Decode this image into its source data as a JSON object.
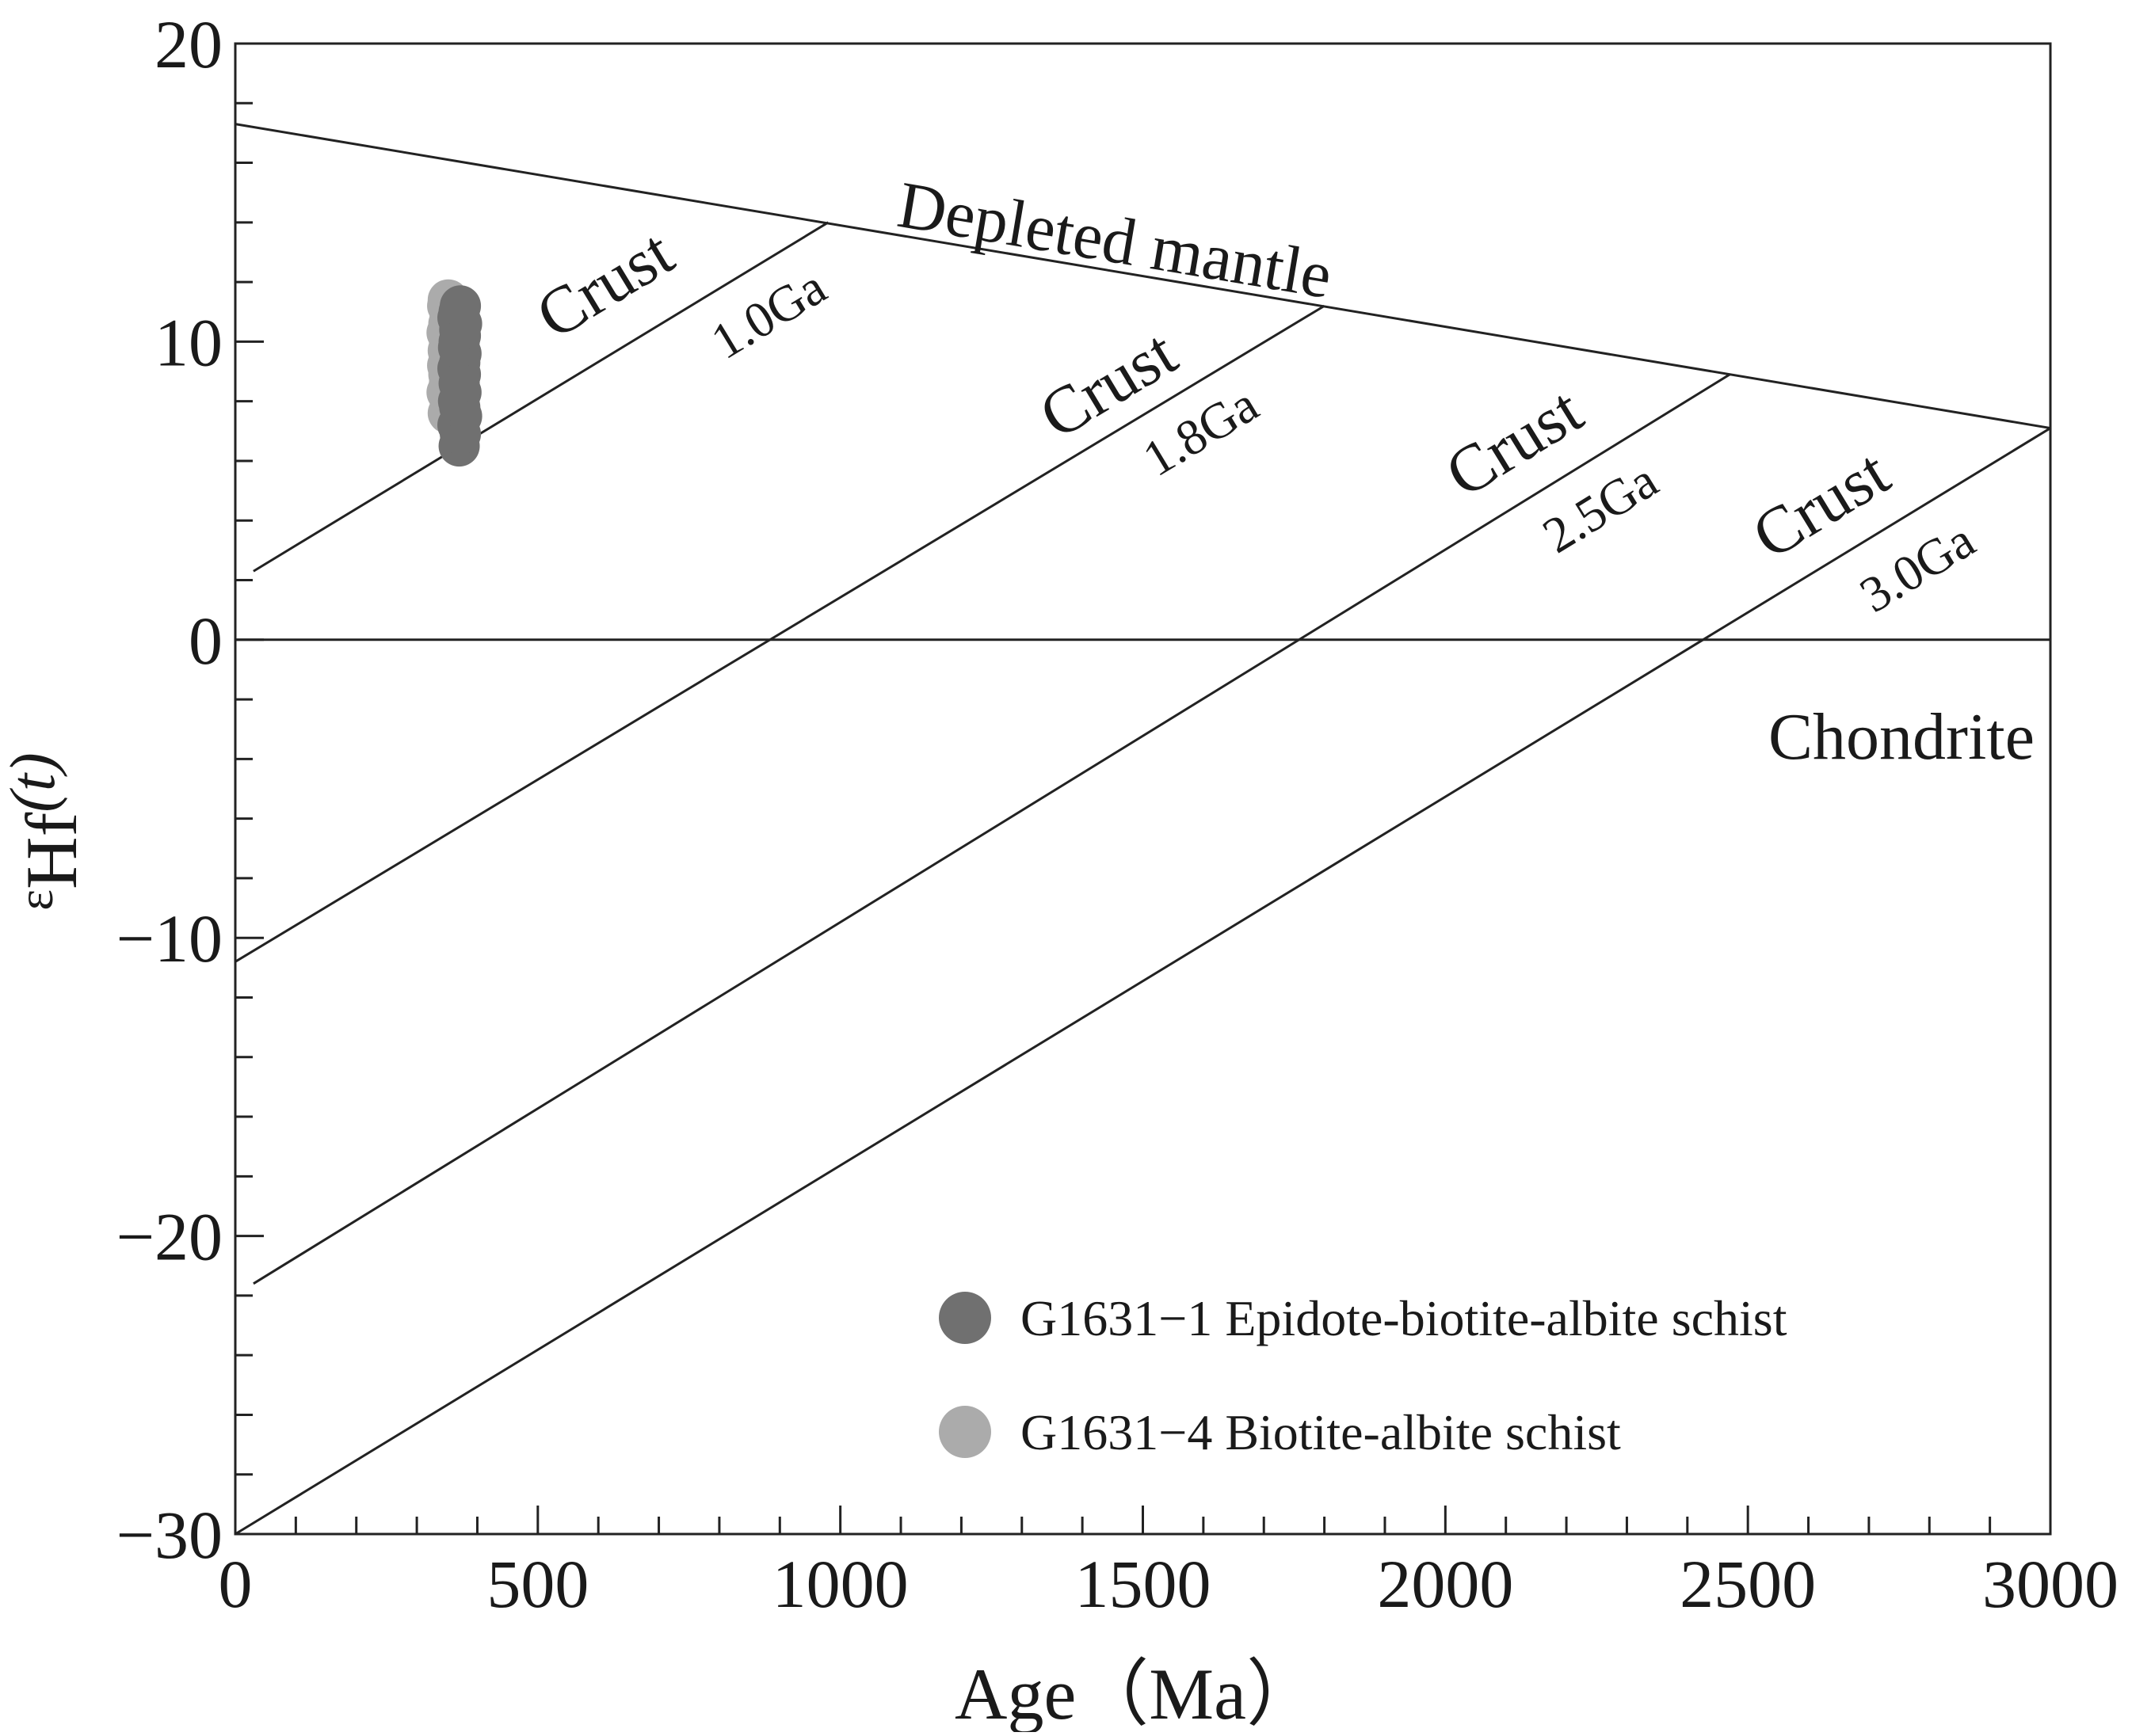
{
  "chart_data": {
    "type": "scatter",
    "xlabel": "Age（Ma）",
    "ylabel_main": "Hf",
    "ylabel_sub": "ε",
    "ylabel_sup": "(t)",
    "xlim": [
      0,
      3000
    ],
    "ylim": [
      -30,
      20
    ],
    "x_ticks": [
      0,
      500,
      1000,
      1500,
      2000,
      2500,
      3000
    ],
    "x_tick_labels": [
      "0",
      "500",
      "1000",
      "1500",
      "2000",
      "2500",
      "3000"
    ],
    "x_minor_step": 100,
    "y_ticks": [
      20,
      10,
      0,
      -10,
      -20,
      -30
    ],
    "y_tick_labels": [
      "20",
      "10",
      "0",
      "−10",
      "−20",
      "−30"
    ],
    "y_minor_step": 2,
    "grid": false,
    "reference_lines": [
      {
        "id": "depleted-mantle",
        "label": "Depleted mantle",
        "x": [
          0,
          3000
        ],
        "y": [
          17.3,
          7.1
        ]
      },
      {
        "id": "chondrite",
        "label": "Chondrite",
        "x": [
          0,
          3000
        ],
        "y": [
          0,
          0
        ]
      }
    ],
    "crust_lines": [
      {
        "id": "crust-1-0",
        "label": "Crust",
        "age_label": "1.0Ga",
        "x": [
          30,
          980
        ],
        "y": [
          2.3,
          14.0
        ]
      },
      {
        "id": "crust-1-8",
        "label": "Crust",
        "age_label": "1.8Ga",
        "x": [
          0,
          1800
        ],
        "y": [
          -10.8,
          11.2
        ]
      },
      {
        "id": "crust-2-5",
        "label": "Crust",
        "age_label": "2.5Ga",
        "x": [
          30,
          2470
        ],
        "y": [
          -21.6,
          8.9
        ]
      },
      {
        "id": "crust-3-0",
        "label": "Crust",
        "age_label": "3.0Ga",
        "x": [
          0,
          3000
        ],
        "y": [
          -30,
          7.1
        ]
      }
    ],
    "series": [
      {
        "name": "G1631−1 Epidote-biotite-albite schist",
        "color": "#707070",
        "x": [
          370,
          372,
          368,
          374,
          371,
          369,
          373,
          370,
          372,
          368,
          371,
          373,
          369,
          370,
          372,
          371,
          374,
          368,
          370,
          372
        ],
        "y": [
          6.5,
          6.9,
          7.2,
          7.5,
          7.8,
          8.0,
          8.3,
          8.6,
          8.9,
          9.1,
          9.3,
          9.6,
          9.8,
          10.0,
          10.2,
          10.4,
          10.6,
          10.8,
          11.0,
          11.2
        ]
      },
      {
        "name": "G1631−4 Biotite-albite schist",
        "color": "#ababab",
        "x": [
          352,
          355,
          350,
          354,
          353,
          351,
          356,
          352,
          354,
          350,
          353,
          355,
          351,
          352
        ],
        "y": [
          7.6,
          8.0,
          8.3,
          8.6,
          8.9,
          9.2,
          9.5,
          9.7,
          10.0,
          10.3,
          10.6,
          10.9,
          11.2,
          11.4
        ]
      }
    ]
  }
}
